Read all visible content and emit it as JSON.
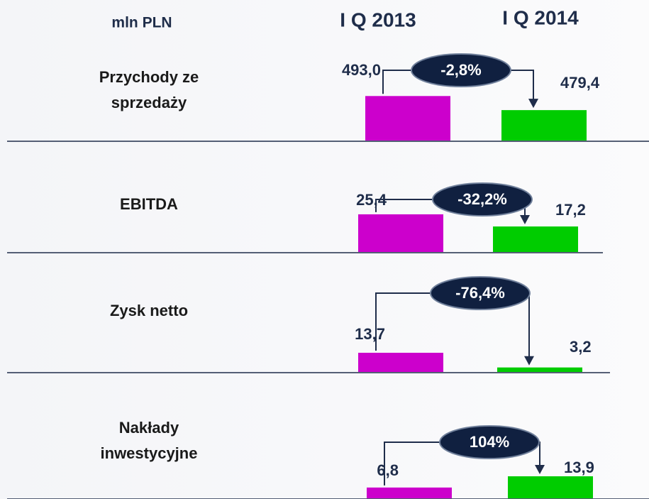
{
  "header": {
    "unit": "mln PLN",
    "periods": [
      "I Q 2013",
      "I Q 2014"
    ]
  },
  "chart_data": [
    {
      "type": "bar",
      "title": "Przychody ze sprzedaży",
      "values": [
        493.0,
        479.4
      ],
      "value_labels": [
        "493,0",
        "479,4"
      ],
      "colors": [
        "#cc00cc",
        "#00cc00"
      ],
      "ylim": [
        450,
        498
      ],
      "change": -2.8,
      "change_label": "-2,8%"
    },
    {
      "type": "bar",
      "title": "EBITDA",
      "values": [
        25.4,
        17.2
      ],
      "value_labels": [
        "25,4",
        "17,2"
      ],
      "colors": [
        "#cc00cc",
        "#00cc00"
      ],
      "ylim": [
        0,
        33.5
      ],
      "change": -32.2,
      "change_label": "-32,2%"
    },
    {
      "type": "bar",
      "title": "Zysk netto",
      "values": [
        13.7,
        3.2
      ],
      "value_labels": [
        "13,7",
        "3,2"
      ],
      "colors": [
        "#cc00cc",
        "#00cc00"
      ],
      "ylim": [
        0,
        35.5
      ],
      "change": -76.4,
      "change_label": "-76,4%"
    },
    {
      "type": "bar",
      "title": "Nakłady inwestycyjne",
      "values": [
        6.8,
        13.9
      ],
      "value_labels": [
        "6,8",
        "13,9"
      ],
      "colors": [
        "#cc00cc",
        "#00cc00"
      ],
      "ylim": [
        0,
        31.4
      ],
      "change": 104,
      "change_label": "104%"
    }
  ]
}
